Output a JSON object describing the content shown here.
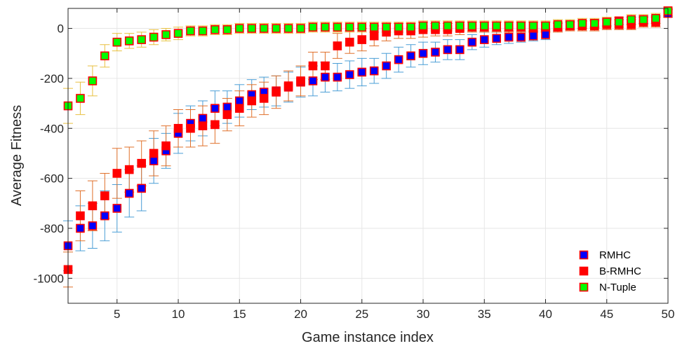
{
  "chart_data": {
    "type": "scatter",
    "xlabel": "Game instance index",
    "ylabel": "Average Fitness",
    "xlim": [
      1,
      50
    ],
    "ylim": [
      -1100,
      80
    ],
    "xticks": [
      5,
      10,
      15,
      20,
      25,
      30,
      35,
      40,
      45,
      50
    ],
    "yticks": [
      0,
      -200,
      -400,
      -600,
      -800,
      -1000
    ],
    "xtick_labels": [
      "5",
      "10",
      "15",
      "20",
      "25",
      "30",
      "35",
      "40",
      "45",
      "50"
    ],
    "ytick_labels": [
      "0",
      "-200",
      "-400",
      "-600",
      "-800",
      "-1000"
    ],
    "grid": true,
    "legend_position": "bottom-right",
    "x": [
      1,
      2,
      3,
      4,
      5,
      6,
      7,
      8,
      9,
      10,
      11,
      12,
      13,
      14,
      15,
      16,
      17,
      18,
      19,
      20,
      21,
      22,
      23,
      24,
      25,
      26,
      27,
      28,
      29,
      30,
      31,
      32,
      33,
      34,
      35,
      36,
      37,
      38,
      39,
      40,
      41,
      42,
      43,
      44,
      45,
      46,
      47,
      48,
      49,
      50
    ],
    "series": [
      {
        "name": "RMHC",
        "fill": "#0000ff",
        "edge": "#ff0000",
        "errbar": "#4a9ed6",
        "values": [
          -870,
          -800,
          -790,
          -750,
          -720,
          -660,
          -640,
          -530,
          -490,
          -420,
          -380,
          -360,
          -320,
          -315,
          -290,
          -265,
          -255,
          -250,
          -235,
          -215,
          -210,
          -195,
          -195,
          -185,
          -175,
          -170,
          -150,
          -125,
          -110,
          -100,
          -95,
          -85,
          -85,
          -55,
          -45,
          -40,
          -35,
          -35,
          -30,
          -25,
          5,
          10,
          15,
          20,
          25,
          30,
          30,
          35,
          35,
          60
        ],
        "errors": [
          100,
          90,
          90,
          100,
          95,
          95,
          90,
          90,
          70,
          80,
          70,
          70,
          70,
          65,
          65,
          60,
          60,
          60,
          60,
          60,
          60,
          60,
          55,
          55,
          55,
          50,
          50,
          50,
          45,
          45,
          40,
          40,
          40,
          30,
          30,
          25,
          25,
          20,
          20,
          20,
          15,
          15,
          15,
          15,
          15,
          15,
          15,
          15,
          15,
          15
        ]
      },
      {
        "name": "B-RMHC",
        "fill": "#ff0000",
        "edge": "#ff0000",
        "errbar": "#e0702a",
        "values": [
          -965,
          -750,
          -710,
          -670,
          -580,
          -565,
          -540,
          -500,
          -470,
          -400,
          -400,
          -390,
          -385,
          -345,
          -320,
          -290,
          -280,
          -255,
          -230,
          -210,
          -150,
          -150,
          -70,
          -55,
          -45,
          -30,
          -15,
          -10,
          -10,
          -5,
          -5,
          -5,
          0,
          5,
          5,
          5,
          5,
          5,
          5,
          5,
          5,
          10,
          10,
          10,
          15,
          15,
          15,
          25,
          25,
          70
        ],
        "errors": [
          70,
          100,
          100,
          90,
          100,
          90,
          90,
          90,
          80,
          75,
          75,
          80,
          75,
          65,
          70,
          65,
          65,
          65,
          60,
          60,
          55,
          55,
          50,
          45,
          45,
          40,
          35,
          30,
          30,
          30,
          25,
          25,
          25,
          20,
          20,
          20,
          20,
          20,
          20,
          20,
          20,
          20,
          20,
          20,
          20,
          20,
          20,
          20,
          20,
          20
        ]
      },
      {
        "name": "N-Tuple",
        "fill": "#00ff00",
        "edge": "#ff0000",
        "errbar": "#e8c040",
        "values": [
          -310,
          -280,
          -210,
          -110,
          -55,
          -50,
          -45,
          -35,
          -25,
          -20,
          -10,
          -10,
          -5,
          -5,
          0,
          0,
          0,
          0,
          0,
          0,
          5,
          5,
          5,
          5,
          5,
          5,
          5,
          5,
          5,
          10,
          10,
          10,
          10,
          10,
          10,
          10,
          10,
          10,
          10,
          10,
          15,
          15,
          20,
          20,
          25,
          25,
          35,
          35,
          40,
          70
        ],
        "errors": [
          70,
          65,
          60,
          45,
          35,
          30,
          30,
          30,
          25,
          25,
          20,
          20,
          20,
          20,
          20,
          20,
          20,
          20,
          20,
          20,
          20,
          20,
          20,
          20,
          20,
          20,
          20,
          20,
          20,
          20,
          20,
          20,
          20,
          20,
          20,
          20,
          20,
          20,
          20,
          20,
          20,
          20,
          20,
          20,
          20,
          20,
          20,
          20,
          20,
          20
        ]
      }
    ]
  }
}
